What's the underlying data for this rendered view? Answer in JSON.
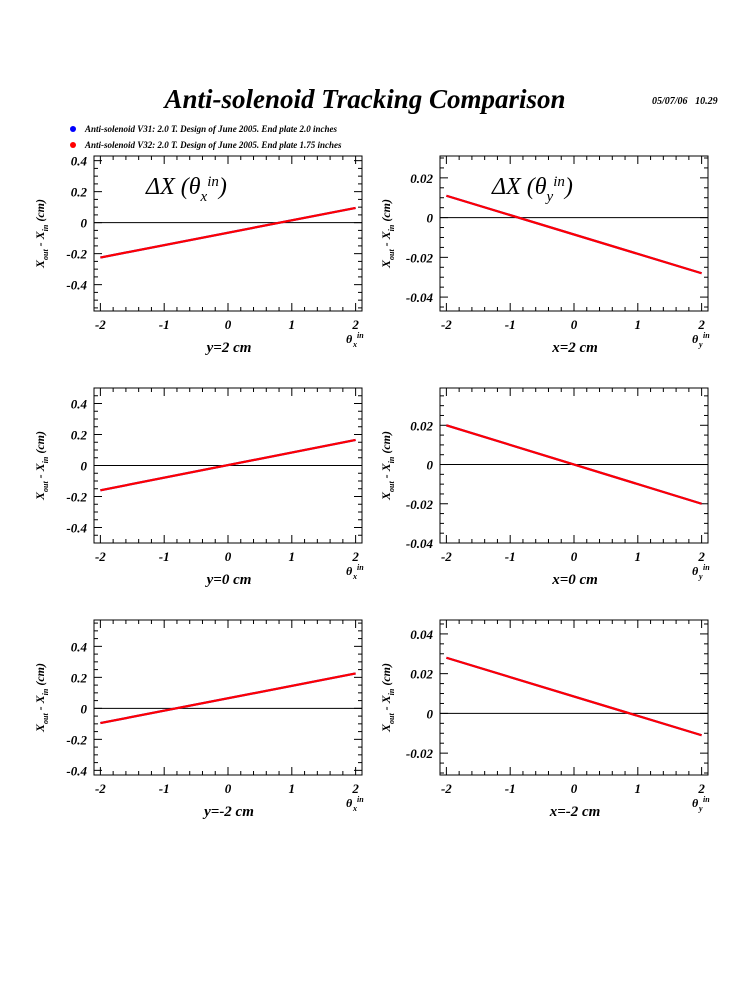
{
  "header": {
    "title": "Anti-solenoid Tracking Comparison",
    "date": "05/07/06",
    "time": "10.29"
  },
  "legend": [
    {
      "label": "Anti-solenoid V31: 2.0 T. Design of June 2005. End plate 2.0 inches",
      "color": "#0000ff"
    },
    {
      "label": "Anti-solenoid V32: 2.0 T. Design of June 2005. End plate 1.75 inches",
      "color": "#ff0000"
    }
  ],
  "colors": {
    "series_v31": "#0000ff",
    "series_v32": "#ff0000",
    "axis": "#000000"
  },
  "chart_data": [
    {
      "type": "line",
      "annotation": "ΔX (θx in)",
      "ylabel": "Xout - Xin (cm)",
      "xlabel": "y=2 cm",
      "xtitle": "θx in",
      "xlim": [
        -2.1,
        2.1
      ],
      "ylim": [
        -0.57,
        0.43
      ],
      "xticks": [
        -2,
        -1,
        0,
        1,
        2
      ],
      "yticks": [
        0.4,
        0.2,
        0,
        -0.2,
        -0.4
      ],
      "ytick_labels": [
        "0.4",
        "0.2",
        "0",
        "-0.2",
        "-0.4"
      ],
      "series": [
        {
          "name": "Anti-solenoid V31",
          "x": [
            -2,
            2
          ],
          "y": [
            -0.225,
            0.095
          ]
        },
        {
          "name": "Anti-solenoid V32",
          "x": [
            -2,
            2
          ],
          "y": [
            -0.225,
            0.095
          ]
        }
      ]
    },
    {
      "type": "line",
      "annotation": "ΔX (θy in)",
      "ylabel": "Xout - Xin (cm)",
      "xlabel": "x=2 cm",
      "xtitle": "θy in",
      "xlim": [
        -2.1,
        2.1
      ],
      "ylim": [
        -0.047,
        0.031
      ],
      "xticks": [
        -2,
        -1,
        0,
        1,
        2
      ],
      "yticks": [
        0.02,
        0,
        -0.02,
        -0.04
      ],
      "ytick_labels": [
        "0.02",
        "0",
        "-0.02",
        "-0.04"
      ],
      "series": [
        {
          "name": "Anti-solenoid V31",
          "x": [
            -2,
            2
          ],
          "y": [
            0.011,
            -0.028
          ]
        },
        {
          "name": "Anti-solenoid V32",
          "x": [
            -2,
            2
          ],
          "y": [
            0.011,
            -0.028
          ]
        }
      ]
    },
    {
      "type": "line",
      "annotation": "",
      "ylabel": "Xout - Xin (cm)",
      "xlabel": "y=0 cm",
      "xtitle": "θx in",
      "xlim": [
        -2.1,
        2.1
      ],
      "ylim": [
        -0.5,
        0.5
      ],
      "xticks": [
        -2,
        -1,
        0,
        1,
        2
      ],
      "yticks": [
        0.4,
        0.2,
        0,
        -0.2,
        -0.4
      ],
      "ytick_labels": [
        "0.4",
        "0.2",
        "0",
        "-0.2",
        "-0.4"
      ],
      "series": [
        {
          "name": "Anti-solenoid V31",
          "x": [
            -2,
            2
          ],
          "y": [
            -0.16,
            0.165
          ]
        },
        {
          "name": "Anti-solenoid V32",
          "x": [
            -2,
            2
          ],
          "y": [
            -0.16,
            0.165
          ]
        }
      ]
    },
    {
      "type": "line",
      "annotation": "",
      "ylabel": "Xout - Xin (cm)",
      "xlabel": "x=0 cm",
      "xtitle": "θy in",
      "xlim": [
        -2.1,
        2.1
      ],
      "ylim": [
        -0.04,
        0.039
      ],
      "xticks": [
        -2,
        -1,
        0,
        1,
        2
      ],
      "yticks": [
        0.02,
        0,
        -0.02,
        -0.04
      ],
      "ytick_labels": [
        "0.02",
        "0",
        "-0.02",
        "-0.04"
      ],
      "series": [
        {
          "name": "Anti-solenoid V31",
          "x": [
            -2,
            2
          ],
          "y": [
            0.02,
            -0.02
          ]
        },
        {
          "name": "Anti-solenoid V32",
          "x": [
            -2,
            2
          ],
          "y": [
            0.02,
            -0.02
          ]
        }
      ]
    },
    {
      "type": "line",
      "annotation": "",
      "ylabel": "Xout - Xin (cm)",
      "xlabel": "y=-2 cm",
      "xtitle": "θx in",
      "xlim": [
        -2.1,
        2.1
      ],
      "ylim": [
        -0.43,
        0.57
      ],
      "xticks": [
        -2,
        -1,
        0,
        1,
        2
      ],
      "yticks": [
        0.4,
        0.2,
        0,
        -0.2,
        -0.4
      ],
      "ytick_labels": [
        "0.4",
        "0.2",
        "0",
        "-0.2",
        "-0.4"
      ],
      "series": [
        {
          "name": "Anti-solenoid V31",
          "x": [
            -2,
            2
          ],
          "y": [
            -0.095,
            0.225
          ]
        },
        {
          "name": "Anti-solenoid V32",
          "x": [
            -2,
            2
          ],
          "y": [
            -0.095,
            0.225
          ]
        }
      ]
    },
    {
      "type": "line",
      "annotation": "",
      "ylabel": "Xout - Xin (cm)",
      "xlabel": "x=-2 cm",
      "xtitle": "θy in",
      "xlim": [
        -2.1,
        2.1
      ],
      "ylim": [
        -0.031,
        0.047
      ],
      "xticks": [
        -2,
        -1,
        0,
        1,
        2
      ],
      "yticks": [
        0.04,
        0.02,
        0,
        -0.02
      ],
      "ytick_labels": [
        "0.04",
        "0.02",
        "0",
        "-0.02"
      ],
      "series": [
        {
          "name": "Anti-solenoid V31",
          "x": [
            -2,
            2
          ],
          "y": [
            0.028,
            -0.011
          ]
        },
        {
          "name": "Anti-solenoid V32",
          "x": [
            -2,
            2
          ],
          "y": [
            0.028,
            -0.011
          ]
        }
      ]
    }
  ]
}
